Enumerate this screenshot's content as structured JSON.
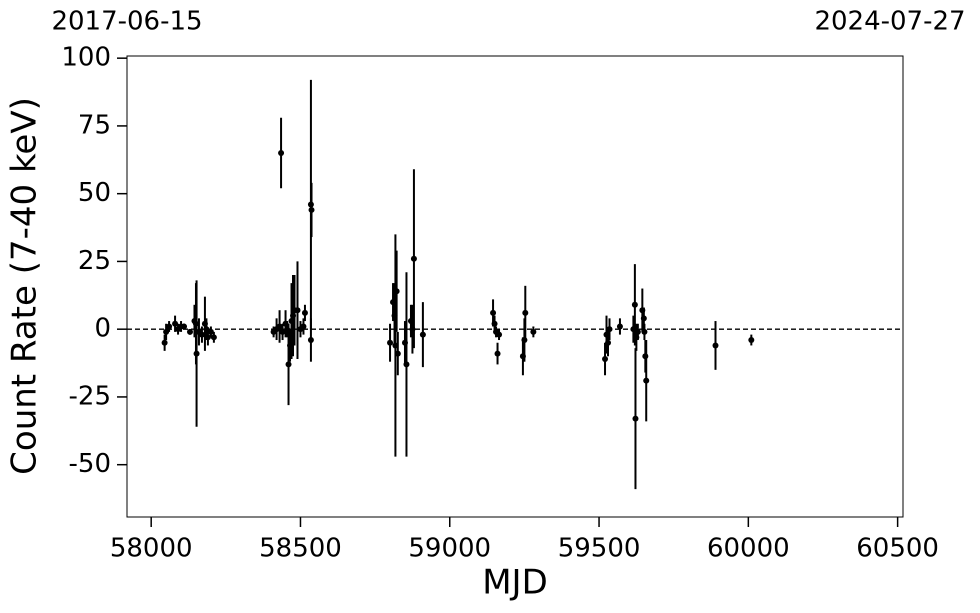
{
  "chart_data": {
    "type": "scatter",
    "xlabel": "MJD",
    "ylabel": "Count Rate (7-40 keV)",
    "xlim": [
      57919,
      60518
    ],
    "ylim": [
      -69.3,
      100.8
    ],
    "xticks": [
      58000,
      58500,
      59000,
      59500,
      60000,
      60500
    ],
    "yticks": [
      -50,
      -25,
      0,
      25,
      50,
      75,
      100
    ],
    "x2ticks": [
      {
        "value": 57919,
        "label": "2017-06-15"
      },
      {
        "value": 60518,
        "label": "2024-07-27"
      }
    ],
    "hline": 0,
    "color": "#000000",
    "x": [
      58045,
      58050,
      58060,
      58080,
      58090,
      58100,
      58110,
      58130,
      58145,
      58150,
      58152,
      58160,
      58170,
      58180,
      58185,
      58190,
      58200,
      58210,
      58410,
      58420,
      58430,
      58435,
      58440,
      58450,
      58455,
      58460,
      58465,
      58470,
      58475,
      58480,
      58490,
      58500,
      58510,
      58515,
      58535,
      58535,
      58537,
      58800,
      58810,
      58815,
      58818,
      58822,
      58826,
      58850,
      58855,
      58870,
      58875,
      58880,
      58910,
      59145,
      59150,
      59155,
      59160,
      59165,
      59245,
      59250,
      59253,
      59280,
      59520,
      59525,
      59530,
      59535,
      59570,
      59615,
      59620,
      59622,
      59625,
      59630,
      59645,
      59650,
      59652,
      59655,
      59658,
      59890,
      60010
    ],
    "y": [
      -5,
      -1,
      1,
      2,
      0,
      1,
      1,
      -1,
      3,
      2,
      -9,
      -1,
      -2,
      2,
      0,
      -3,
      -1,
      -3,
      -1,
      0,
      1,
      65,
      -1,
      2,
      0,
      -13,
      -6,
      3,
      5,
      7,
      7,
      0,
      1,
      6,
      -4,
      46,
      44,
      -5,
      10,
      5,
      -6,
      14,
      -9,
      -5,
      -13,
      3,
      0,
      26,
      -2,
      6,
      2,
      -1,
      -9,
      -2,
      -10,
      -4,
      6,
      -1,
      -11,
      -2,
      -5,
      0,
      1,
      0,
      9,
      -33,
      -3,
      -1,
      7,
      4,
      -1,
      -10,
      -19,
      -6,
      -4
    ],
    "yerr": [
      3,
      3,
      2,
      3,
      2,
      2,
      1,
      1,
      6,
      15,
      27,
      5,
      3,
      10,
      4,
      3,
      2,
      2,
      2,
      4,
      6,
      13,
      3,
      5,
      3,
      15,
      6,
      14,
      15,
      13,
      18,
      3,
      3,
      3,
      8,
      46,
      10,
      7,
      7,
      12,
      41,
      15,
      8,
      8,
      34,
      6,
      9,
      33,
      12,
      5,
      3,
      2,
      4,
      2,
      7,
      8,
      10,
      2,
      6,
      7,
      5,
      4,
      3,
      5,
      15,
      26,
      5,
      3,
      8,
      4,
      3,
      6,
      15,
      9,
      2
    ]
  }
}
